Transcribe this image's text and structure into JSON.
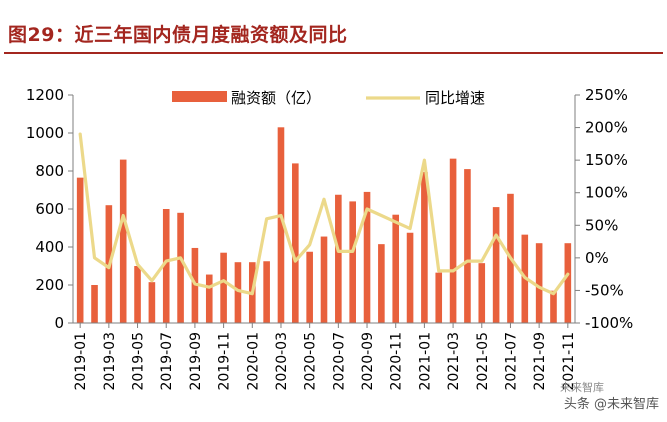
{
  "title": "图29：近三年国内债月度融资额及同比",
  "watermark": {
    "line1": "头条 @未来智库",
    "logo": "未来智库"
  },
  "colors": {
    "bar": "#e8603c",
    "line": "#ecd98a",
    "title": "#a3261f",
    "axis": "#7f7f7f"
  },
  "chart_data": {
    "type": "bar+line",
    "categories": [
      "2019-01",
      "2019-02",
      "2019-03",
      "2019-04",
      "2019-05",
      "2019-06",
      "2019-07",
      "2019-08",
      "2019-09",
      "2019-10",
      "2019-11",
      "2019-12",
      "2020-01",
      "2020-02",
      "2020-03",
      "2020-04",
      "2020-05",
      "2020-06",
      "2020-07",
      "2020-08",
      "2020-09",
      "2020-10",
      "2020-11",
      "2020-12",
      "2021-01",
      "2021-02",
      "2021-03",
      "2021-04",
      "2021-05",
      "2021-06",
      "2021-07",
      "2021-08",
      "2021-09",
      "2021-10",
      "2021-11"
    ],
    "xtick_labels": [
      "2019-01",
      "2019-03",
      "2019-05",
      "2019-07",
      "2019-09",
      "2019-11",
      "2020-01",
      "2020-03",
      "2020-05",
      "2020-07",
      "2020-09",
      "2020-11",
      "2021-01",
      "2021-03",
      "2021-05",
      "2021-07",
      "2021-09",
      "2021-11"
    ],
    "series": [
      {
        "name": "融资额（亿）",
        "type": "bar",
        "axis": "left",
        "values": [
          765,
          200,
          620,
          860,
          300,
          215,
          600,
          580,
          395,
          255,
          370,
          320,
          320,
          325,
          1030,
          840,
          375,
          455,
          675,
          640,
          690,
          415,
          570,
          475,
          795,
          265,
          865,
          810,
          315,
          610,
          680,
          465,
          420,
          170,
          420
        ]
      },
      {
        "name": "同比增速",
        "type": "line",
        "axis": "right",
        "values": [
          190,
          0,
          -15,
          65,
          -10,
          -35,
          -5,
          0,
          -40,
          -45,
          -35,
          -50,
          -55,
          60,
          65,
          -5,
          20,
          90,
          10,
          10,
          75,
          65,
          55,
          45,
          150,
          -20,
          -20,
          -5,
          -5,
          35,
          0,
          -30,
          -45,
          -55,
          -25
        ]
      }
    ],
    "ylim_left": [
      0,
      1200
    ],
    "yticks_left": [
      "0",
      "200",
      "400",
      "600",
      "800",
      "1000",
      "1200"
    ],
    "ylim_right": [
      -100,
      250
    ],
    "yticks_right": [
      "-100%",
      "-50%",
      "0%",
      "50%",
      "100%",
      "150%",
      "200%",
      "250%"
    ],
    "legend": [
      "融资额（亿）",
      "同比增速"
    ],
    "legend_position": "top-center"
  }
}
